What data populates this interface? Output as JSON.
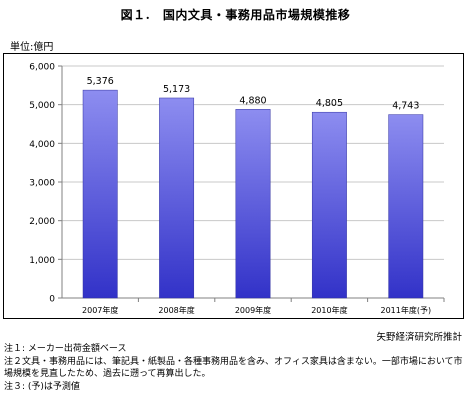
{
  "title": "図１.　国内文具・事務用品市場規模推移",
  "unit_label": "単位:億円",
  "source": "矢野経済研究所推計",
  "notes": [
    "注１: メーカー出荷金額ベース",
    "注２文具・事務用品には、筆記具・紙製品・各種事務用品を含み、オフィス家具は含まない。一部市場において市場規模を見直したため、過去に遡って再算出した。",
    "注３: (予)は予測値"
  ],
  "colors": {
    "bar_top": "#8d8df0",
    "bar_bottom": "#3232c8",
    "grid": "#c8c8c8",
    "axis": "#808080"
  },
  "chart_data": {
    "type": "bar",
    "title": "図１.　国内文具・事務用品市場規模推移",
    "ylabel": "単位:億円",
    "xlabel": "",
    "categories": [
      "2007年度",
      "2008年度",
      "2009年度",
      "2010年度",
      "2011年度(予)"
    ],
    "values": [
      5376,
      5173,
      4880,
      4805,
      4743
    ],
    "data_labels": [
      "5,376",
      "5,173",
      "4,880",
      "4,805",
      "4,743"
    ],
    "ylim": [
      0,
      6000
    ],
    "yticks": [
      0,
      1000,
      2000,
      3000,
      4000,
      5000,
      6000
    ],
    "ytick_labels": [
      "0",
      "1,000",
      "2,000",
      "3,000",
      "4,000",
      "5,000",
      "6,000"
    ],
    "grid": true,
    "legend": "none"
  }
}
